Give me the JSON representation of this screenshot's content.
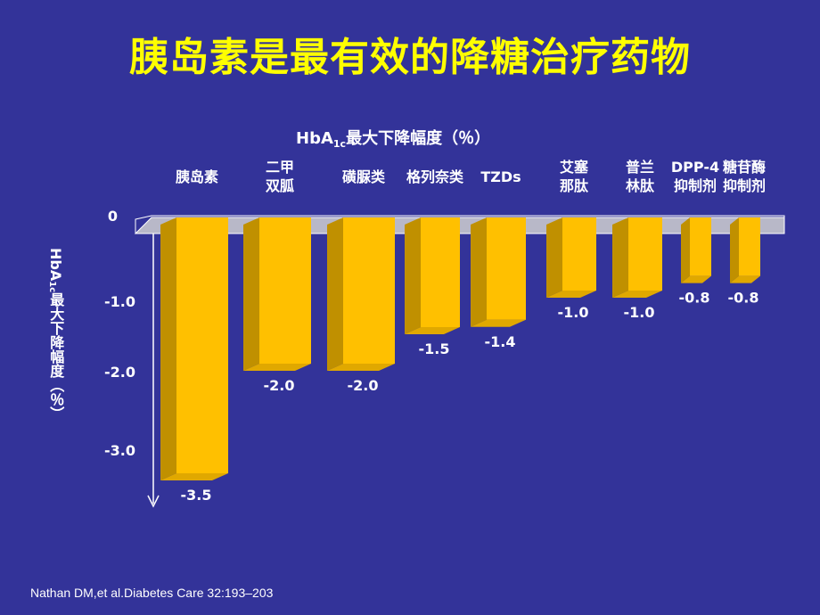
{
  "title": "胰岛素是最有效的降糖治疗药物",
  "citation": "Nathan DM,et al.Diabetes Care 32:193–203",
  "colors": {
    "background": "#333399",
    "title": "#ffff00",
    "bar_front": "#ffc000",
    "bar_side": "#c09000",
    "bar_bottom": "#e0a800",
    "zero_plane": "#b8b8c8"
  },
  "chart_data": {
    "type": "bar",
    "title_main": "HbA",
    "title_sub": "1c",
    "title_rest": "最大下降幅度（％）",
    "ylabel_main": "HbA",
    "ylabel_sub": "1c",
    "ylabel_rest": "最大下降幅度（％）",
    "categories": [
      "胰岛素",
      "二甲\n双胍",
      "磺脲类",
      "格列奈类",
      "TZDs",
      "艾塞\n那肽",
      "普兰\n林肽",
      "DPP-4\n抑制剂",
      "糖苷酶\n抑制剂"
    ],
    "values": [
      -3.5,
      -2.0,
      -2.0,
      -1.5,
      -1.4,
      -1.0,
      -1.0,
      -0.8,
      -0.8
    ],
    "value_labels": [
      "-3.5",
      "-2.0",
      "-2.0",
      "-1.5",
      "-1.4",
      "-1.0",
      "-1.0",
      "-0.8",
      "-0.8"
    ],
    "yticks": [
      "0",
      "-1.0",
      "-2.0",
      "-3.0"
    ],
    "ylim": [
      -3.5,
      0
    ],
    "grid": false,
    "legend": "none"
  }
}
